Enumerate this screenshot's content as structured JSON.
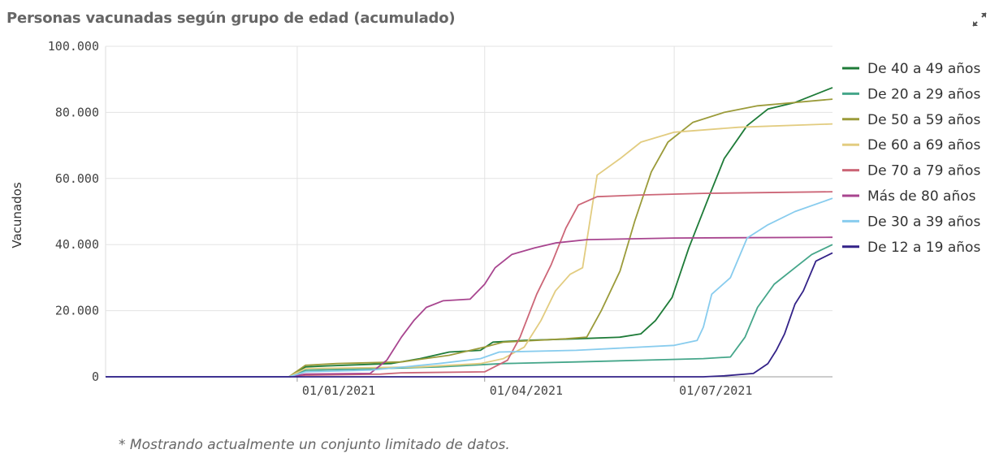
{
  "header": {
    "title": "Personas vacunadas según grupo de edad (acumulado)",
    "expand_icon": "expand-icon"
  },
  "footnote": "* Mostrando actualmente un conjunto limitado de datos.",
  "chart_data": {
    "type": "line",
    "title": "Personas vacunadas según grupo de edad (acumulado)",
    "xlabel": "",
    "ylabel": "Vacunados",
    "ylim": [
      0,
      100000
    ],
    "yticks": [
      0,
      20000,
      40000,
      60000,
      80000,
      100000
    ],
    "ytick_labels": [
      "0",
      "20.000",
      "40.000",
      "60.000",
      "80.000",
      "100.000"
    ],
    "xlim": [
      "2020-10-01",
      "2021-09-15"
    ],
    "xticks": [
      "2021-01-01",
      "2021-04-01",
      "2021-07-01"
    ],
    "xtick_labels": [
      "01/01/2021",
      "01/04/2021",
      "01/07/2021"
    ],
    "grid": true,
    "legend_position": "right",
    "series": [
      {
        "name": "De 40 a 49 años",
        "color": "#1e7b38",
        "points": [
          [
            "2020-10-01",
            0
          ],
          [
            "2020-12-28",
            0
          ],
          [
            "2021-01-05",
            3000
          ],
          [
            "2021-01-15",
            3300
          ],
          [
            "2021-02-15",
            4000
          ],
          [
            "2021-03-01",
            5500
          ],
          [
            "2021-03-15",
            7500
          ],
          [
            "2021-03-30",
            8000
          ],
          [
            "2021-04-05",
            10500
          ],
          [
            "2021-04-20",
            11000
          ],
          [
            "2021-05-15",
            11500
          ],
          [
            "2021-06-05",
            12000
          ],
          [
            "2021-06-15",
            13000
          ],
          [
            "2021-06-22",
            17000
          ],
          [
            "2021-06-30",
            24000
          ],
          [
            "2021-07-08",
            39000
          ],
          [
            "2021-07-18",
            55000
          ],
          [
            "2021-07-25",
            66000
          ],
          [
            "2021-08-05",
            76000
          ],
          [
            "2021-08-15",
            81000
          ],
          [
            "2021-08-28",
            83000
          ],
          [
            "2021-09-15",
            87500
          ]
        ]
      },
      {
        "name": "De 20 a 29 años",
        "color": "#45a68a",
        "points": [
          [
            "2020-10-01",
            0
          ],
          [
            "2020-12-28",
            0
          ],
          [
            "2021-01-05",
            2000
          ],
          [
            "2021-02-10",
            2500
          ],
          [
            "2021-03-10",
            3000
          ],
          [
            "2021-04-10",
            4000
          ],
          [
            "2021-05-15",
            4500
          ],
          [
            "2021-06-15",
            5000
          ],
          [
            "2021-07-15",
            5500
          ],
          [
            "2021-07-28",
            6000
          ],
          [
            "2021-08-04",
            12000
          ],
          [
            "2021-08-10",
            21000
          ],
          [
            "2021-08-18",
            28000
          ],
          [
            "2021-08-28",
            33000
          ],
          [
            "2021-09-05",
            37000
          ],
          [
            "2021-09-15",
            40000
          ]
        ]
      },
      {
        "name": "De 50 a 59 años",
        "color": "#9b9b3a",
        "points": [
          [
            "2020-10-01",
            0
          ],
          [
            "2020-12-28",
            0
          ],
          [
            "2021-01-05",
            3500
          ],
          [
            "2021-01-20",
            4000
          ],
          [
            "2021-02-20",
            4500
          ],
          [
            "2021-03-15",
            6500
          ],
          [
            "2021-04-01",
            9000
          ],
          [
            "2021-04-10",
            10500
          ],
          [
            "2021-05-10",
            11500
          ],
          [
            "2021-05-20",
            12000
          ],
          [
            "2021-05-27",
            20000
          ],
          [
            "2021-06-05",
            32000
          ],
          [
            "2021-06-12",
            47000
          ],
          [
            "2021-06-20",
            62000
          ],
          [
            "2021-06-28",
            71000
          ],
          [
            "2021-07-10",
            77000
          ],
          [
            "2021-07-25",
            80000
          ],
          [
            "2021-08-10",
            82000
          ],
          [
            "2021-09-15",
            84000
          ]
        ]
      },
      {
        "name": "De 60 a 69 años",
        "color": "#e2cc80",
        "points": [
          [
            "2020-10-01",
            0
          ],
          [
            "2020-12-28",
            0
          ],
          [
            "2021-01-05",
            2500
          ],
          [
            "2021-03-01",
            3000
          ],
          [
            "2021-03-30",
            4000
          ],
          [
            "2021-04-10",
            5500
          ],
          [
            "2021-04-20",
            9000
          ],
          [
            "2021-04-28",
            17000
          ],
          [
            "2021-05-05",
            26000
          ],
          [
            "2021-05-12",
            31000
          ],
          [
            "2021-05-18",
            33000
          ],
          [
            "2021-05-25",
            61000
          ],
          [
            "2021-06-05",
            66000
          ],
          [
            "2021-06-15",
            71000
          ],
          [
            "2021-07-01",
            74000
          ],
          [
            "2021-08-01",
            75500
          ],
          [
            "2021-09-15",
            76500
          ]
        ]
      },
      {
        "name": "De 70 a 79 años",
        "color": "#cc6677",
        "points": [
          [
            "2020-10-01",
            0
          ],
          [
            "2020-12-28",
            0
          ],
          [
            "2021-01-05",
            500
          ],
          [
            "2021-02-10",
            800
          ],
          [
            "2021-02-20",
            1200
          ],
          [
            "2021-04-01",
            1500
          ],
          [
            "2021-04-12",
            5000
          ],
          [
            "2021-04-18",
            12000
          ],
          [
            "2021-04-26",
            25000
          ],
          [
            "2021-05-03",
            34000
          ],
          [
            "2021-05-10",
            45000
          ],
          [
            "2021-05-16",
            52000
          ],
          [
            "2021-05-25",
            54500
          ],
          [
            "2021-06-15",
            55000
          ],
          [
            "2021-07-15",
            55500
          ],
          [
            "2021-09-15",
            56000
          ]
        ]
      },
      {
        "name": "Más de 80 años",
        "color": "#a8458f",
        "points": [
          [
            "2020-10-01",
            0
          ],
          [
            "2020-12-28",
            0
          ],
          [
            "2021-01-05",
            800
          ],
          [
            "2021-02-05",
            1000
          ],
          [
            "2021-02-13",
            5000
          ],
          [
            "2021-02-20",
            12000
          ],
          [
            "2021-02-26",
            17000
          ],
          [
            "2021-03-04",
            21000
          ],
          [
            "2021-03-12",
            23000
          ],
          [
            "2021-03-25",
            23500
          ],
          [
            "2021-04-01",
            28000
          ],
          [
            "2021-04-06",
            33000
          ],
          [
            "2021-04-14",
            37000
          ],
          [
            "2021-04-25",
            39000
          ],
          [
            "2021-05-05",
            40500
          ],
          [
            "2021-05-20",
            41500
          ],
          [
            "2021-07-01",
            42000
          ],
          [
            "2021-09-15",
            42200
          ]
        ]
      },
      {
        "name": "De 30 a 39 años",
        "color": "#88ccee",
        "points": [
          [
            "2020-10-01",
            0
          ],
          [
            "2020-12-28",
            0
          ],
          [
            "2021-01-05",
            1500
          ],
          [
            "2021-02-05",
            2000
          ],
          [
            "2021-03-10",
            4000
          ],
          [
            "2021-03-30",
            5500
          ],
          [
            "2021-04-08",
            7500
          ],
          [
            "2021-05-15",
            8000
          ],
          [
            "2021-06-15",
            9000
          ],
          [
            "2021-07-01",
            9500
          ],
          [
            "2021-07-12",
            11000
          ],
          [
            "2021-07-15",
            15000
          ],
          [
            "2021-07-19",
            25000
          ],
          [
            "2021-07-28",
            30000
          ],
          [
            "2021-08-05",
            42000
          ],
          [
            "2021-08-15",
            46000
          ],
          [
            "2021-08-28",
            50000
          ],
          [
            "2021-09-15",
            54000
          ]
        ]
      },
      {
        "name": "De 12 a 19 años",
        "color": "#332288",
        "points": [
          [
            "2020-10-01",
            0
          ],
          [
            "2021-07-15",
            0
          ],
          [
            "2021-07-25",
            300
          ],
          [
            "2021-08-08",
            1000
          ],
          [
            "2021-08-15",
            4000
          ],
          [
            "2021-08-19",
            8000
          ],
          [
            "2021-08-23",
            13000
          ],
          [
            "2021-08-28",
            22000
          ],
          [
            "2021-09-01",
            26000
          ],
          [
            "2021-09-07",
            35000
          ],
          [
            "2021-09-15",
            37500
          ]
        ]
      }
    ]
  }
}
